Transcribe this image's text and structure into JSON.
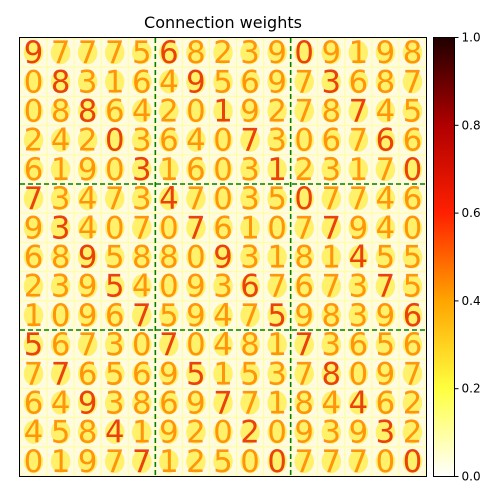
{
  "chart_data": {
    "type": "heatmap",
    "title": "Connection weights",
    "colormap": "hot_r",
    "colormap_stops": [
      "#ffffff",
      "#ffff40",
      "#ffa500",
      "#ff2000",
      "#b00000",
      "#200000"
    ],
    "value_range": [
      0.0,
      1.0
    ],
    "colorbar": {
      "ticks": [
        0.0,
        0.2,
        0.4,
        0.6,
        0.8,
        1.0
      ],
      "tick_labels": [
        "0.0",
        "0.2",
        "0.4",
        "0.6",
        "0.8",
        "1.0"
      ]
    },
    "grid": {
      "tiles_per_side": 15,
      "blocks_per_side": 3,
      "divider_color": "#008000",
      "divider_style": "dashed"
    },
    "tile_digits": [
      [
        "9",
        "7",
        "7",
        "7",
        "5",
        "6",
        "8",
        "2",
        "3",
        "9",
        "0",
        "9",
        "1",
        "9",
        "8"
      ],
      [
        "0",
        "8",
        "3",
        "1",
        "6",
        "4",
        "9",
        "5",
        "6",
        "9",
        "7",
        "3",
        "6",
        "8",
        "7"
      ],
      [
        "0",
        "8",
        "8",
        "6",
        "4",
        "2",
        "0",
        "1",
        "9",
        "2",
        "7",
        "8",
        "7",
        "4",
        "5"
      ],
      [
        "2",
        "4",
        "2",
        "0",
        "3",
        "6",
        "4",
        "0",
        "7",
        "3",
        "0",
        "6",
        "7",
        "6",
        "6"
      ],
      [
        "6",
        "1",
        "9",
        "0",
        "3",
        "1",
        "6",
        "0",
        "3",
        "1",
        "2",
        "3",
        "1",
        "7",
        "0"
      ],
      [
        "7",
        "3",
        "4",
        "7",
        "3",
        "4",
        "7",
        "0",
        "3",
        "5",
        "0",
        "7",
        "7",
        "4",
        "6"
      ],
      [
        "9",
        "3",
        "4",
        "0",
        "7",
        "0",
        "7",
        "6",
        "1",
        "0",
        "7",
        "7",
        "9",
        "4",
        "0"
      ],
      [
        "6",
        "8",
        "9",
        "5",
        "8",
        "8",
        "0",
        "9",
        "3",
        "1",
        "8",
        "1",
        "4",
        "5",
        "5"
      ],
      [
        "2",
        "3",
        "9",
        "5",
        "4",
        "0",
        "9",
        "3",
        "6",
        "7",
        "6",
        "7",
        "3",
        "7",
        "5"
      ],
      [
        "1",
        "0",
        "9",
        "6",
        "7",
        "5",
        "9",
        "4",
        "7",
        "5",
        "9",
        "8",
        "3",
        "9",
        "6"
      ],
      [
        "5",
        "6",
        "7",
        "3",
        "0",
        "7",
        "0",
        "4",
        "8",
        "1",
        "7",
        "3",
        "6",
        "5",
        "6"
      ],
      [
        "7",
        "7",
        "6",
        "5",
        "6",
        "9",
        "5",
        "1",
        "5",
        "3",
        "7",
        "8",
        "0",
        "9",
        "7"
      ],
      [
        "6",
        "4",
        "9",
        "3",
        "8",
        "6",
        "9",
        "7",
        "7",
        "1",
        "8",
        "4",
        "4",
        "6",
        "2"
      ],
      [
        "4",
        "5",
        "8",
        "4",
        "1",
        "9",
        "2",
        "0",
        "2",
        "0",
        "9",
        "3",
        "9",
        "3",
        "2"
      ],
      [
        "0",
        "1",
        "9",
        "7",
        "7",
        "1",
        "2",
        "5",
        "0",
        "0",
        "7",
        "7",
        "7",
        "0",
        "0"
      ]
    ]
  }
}
